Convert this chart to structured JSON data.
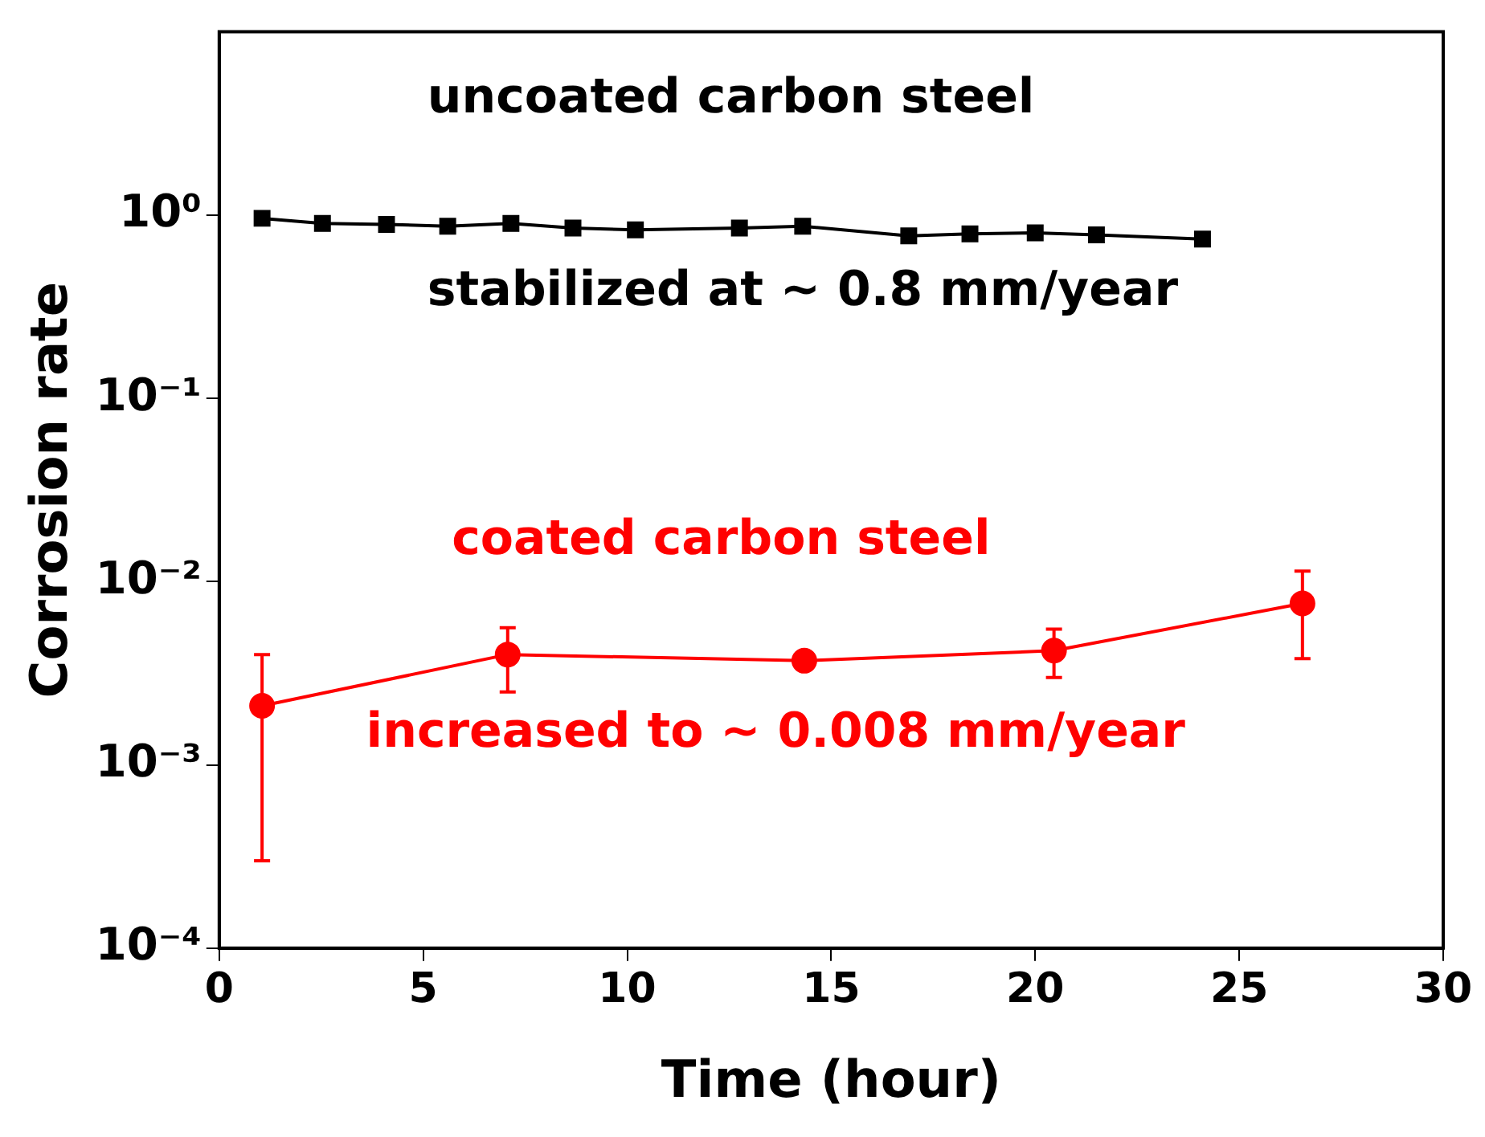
{
  "chart_data": {
    "type": "line",
    "xlabel": "Time (hour)",
    "ylabel": "Corrosion rate",
    "log": "y",
    "grid": false,
    "legend": false,
    "line_style": "solid",
    "xlim": [
      0,
      30
    ],
    "xticks": [
      0,
      5,
      10,
      15,
      20,
      25,
      30
    ],
    "ylim": [
      0.0001,
      10
    ],
    "yticks": [
      {
        "value": 1,
        "label": "10⁰"
      },
      {
        "value": 0.1,
        "label": "10⁻¹"
      },
      {
        "value": 0.01,
        "label": "10⁻²"
      },
      {
        "value": 0.001,
        "label": "10⁻³"
      },
      {
        "value": 0.0001,
        "label": "10⁻⁴"
      }
    ],
    "series": [
      {
        "color": "#000000",
        "marker": "square",
        "x": [
          1.05,
          2.53,
          4.1,
          5.6,
          7.15,
          8.67,
          10.2,
          12.75,
          14.3,
          16.9,
          18.4,
          20.0,
          21.5,
          24.1
        ],
        "values": [
          0.96,
          0.9,
          0.89,
          0.87,
          0.9,
          0.85,
          0.83,
          0.85,
          0.87,
          0.77,
          0.79,
          0.8,
          0.78,
          0.74
        ]
      },
      {
        "color": "#ff0000",
        "marker": "circle",
        "x": [
          1.05,
          7.07,
          14.34,
          20.46,
          26.55
        ],
        "values": [
          0.0021,
          0.004,
          0.0037,
          0.0042,
          0.0076
        ],
        "errors": [
          [
            0.0003,
            0.004
          ],
          [
            0.0025,
            0.0056
          ],
          null,
          [
            0.003,
            0.0055
          ],
          [
            0.0038,
            0.0114
          ]
        ]
      }
    ],
    "annotations": [
      "uncoated carbon steel",
      "stabilized at ~ 0.8 mm/year",
      "coated carbon steel",
      "increased to ~ 0.008 mm/year"
    ]
  }
}
